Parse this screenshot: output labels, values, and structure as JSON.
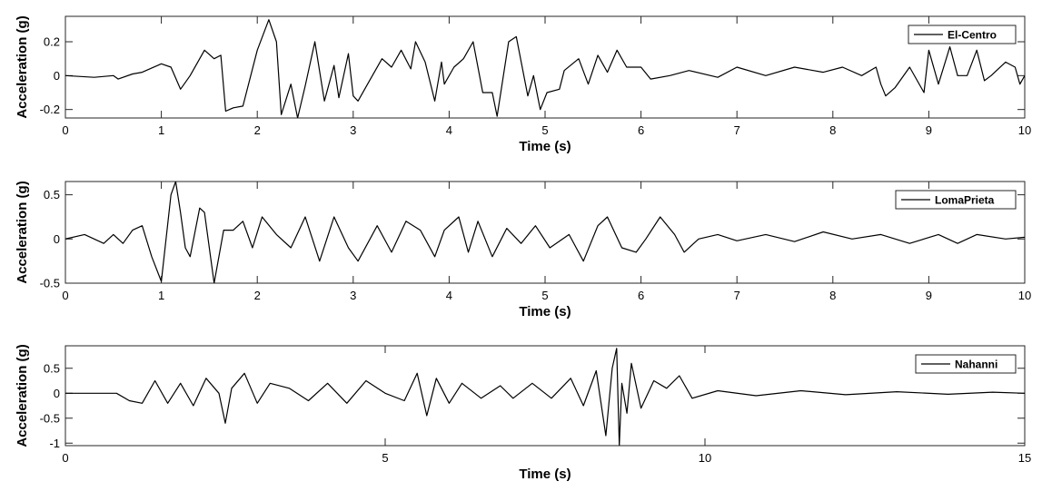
{
  "chart_data": [
    {
      "type": "line",
      "xlabel": "Time (s)",
      "ylabel": "Acceleration (g)",
      "xlim": [
        0,
        10
      ],
      "ylim": [
        -0.25,
        0.35
      ],
      "x_ticks": [
        0,
        1,
        2,
        3,
        4,
        5,
        6,
        7,
        8,
        9,
        10
      ],
      "x_tick_labels": [
        "0",
        "1",
        "2",
        "3",
        "4",
        "5",
        "6",
        "7",
        "8",
        "9",
        "10"
      ],
      "y_ticks": [
        -0.2,
        0,
        0.2
      ],
      "y_tick_labels": [
        "-0.2",
        "0",
        "0.2"
      ],
      "legend_position": "top-right",
      "grid": false,
      "series": [
        {
          "name": "El-Centro",
          "color": "#000000",
          "x": [
            0,
            0.3,
            0.5,
            0.55,
            0.7,
            0.8,
            1.0,
            1.1,
            1.2,
            1.3,
            1.45,
            1.55,
            1.62,
            1.67,
            1.75,
            1.85,
            2.0,
            2.12,
            2.2,
            2.25,
            2.35,
            2.42,
            2.5,
            2.6,
            2.7,
            2.8,
            2.85,
            2.95,
            3.0,
            3.05,
            3.15,
            3.3,
            3.4,
            3.5,
            3.6,
            3.65,
            3.75,
            3.85,
            3.92,
            3.95,
            4.05,
            4.15,
            4.25,
            4.35,
            4.45,
            4.5,
            4.62,
            4.7,
            4.82,
            4.88,
            4.95,
            5.02,
            5.15,
            5.2,
            5.35,
            5.45,
            5.55,
            5.65,
            5.75,
            5.85,
            6.0,
            6.1,
            6.3,
            6.5,
            6.8,
            7.0,
            7.3,
            7.6,
            7.9,
            8.1,
            8.3,
            8.45,
            8.5,
            8.55,
            8.65,
            8.8,
            8.95,
            9.0,
            9.1,
            9.22,
            9.3,
            9.4,
            9.5,
            9.58,
            9.65,
            9.8,
            9.9,
            9.95,
            10.0
          ],
          "y": [
            0,
            -0.01,
            0,
            -0.02,
            0.01,
            0.02,
            0.07,
            0.05,
            -0.08,
            0.0,
            0.15,
            0.1,
            0.12,
            -0.21,
            -0.19,
            -0.18,
            0.15,
            0.33,
            0.2,
            -0.23,
            -0.05,
            -0.25,
            -0.06,
            0.2,
            -0.15,
            0.06,
            -0.13,
            0.13,
            -0.12,
            -0.15,
            -0.05,
            0.1,
            0.05,
            0.15,
            0.04,
            0.2,
            0.08,
            -0.15,
            0.08,
            -0.05,
            0.05,
            0.1,
            0.2,
            -0.1,
            -0.1,
            -0.24,
            0.2,
            0.23,
            -0.12,
            0.0,
            -0.2,
            -0.1,
            -0.08,
            0.03,
            0.1,
            -0.05,
            0.12,
            0.02,
            0.15,
            0.05,
            0.05,
            -0.02,
            0.0,
            0.03,
            -0.01,
            0.05,
            0.0,
            0.05,
            0.02,
            0.05,
            0.0,
            0.05,
            -0.05,
            -0.12,
            -0.07,
            0.05,
            -0.1,
            0.15,
            -0.05,
            0.17,
            0.0,
            0.0,
            0.15,
            -0.03,
            0.0,
            0.08,
            0.05,
            -0.05,
            0.0
          ]
        }
      ]
    },
    {
      "type": "line",
      "xlabel": "Time (s)",
      "ylabel": "Acceleration (g)",
      "xlim": [
        0,
        10
      ],
      "ylim": [
        -0.5,
        0.65
      ],
      "x_ticks": [
        0,
        1,
        2,
        3,
        4,
        5,
        6,
        7,
        8,
        9,
        10
      ],
      "x_tick_labels": [
        "0",
        "1",
        "2",
        "3",
        "4",
        "5",
        "6",
        "7",
        "8",
        "9",
        "10"
      ],
      "y_ticks": [
        -0.5,
        0,
        0.5
      ],
      "y_tick_labels": [
        "-0.5",
        "0",
        "0.5"
      ],
      "legend_position": "top-right",
      "grid": false,
      "series": [
        {
          "name": "LomaPrieta",
          "color": "#000000",
          "x": [
            0,
            0.2,
            0.4,
            0.5,
            0.6,
            0.7,
            0.8,
            0.9,
            1.0,
            1.1,
            1.15,
            1.2,
            1.25,
            1.3,
            1.4,
            1.45,
            1.55,
            1.65,
            1.75,
            1.85,
            1.95,
            2.05,
            2.2,
            2.35,
            2.5,
            2.65,
            2.8,
            2.95,
            3.05,
            3.25,
            3.4,
            3.55,
            3.7,
            3.85,
            3.95,
            4.1,
            4.2,
            4.3,
            4.45,
            4.6,
            4.75,
            4.9,
            5.05,
            5.25,
            5.4,
            5.55,
            5.65,
            5.8,
            5.95,
            6.05,
            6.2,
            6.35,
            6.45,
            6.6,
            6.8,
            7.0,
            7.3,
            7.6,
            7.9,
            8.2,
            8.5,
            8.8,
            9.1,
            9.3,
            9.5,
            9.8,
            10.0
          ],
          "y": [
            0,
            0.05,
            -0.05,
            0.05,
            -0.05,
            0.1,
            0.15,
            -0.2,
            -0.48,
            0.5,
            0.65,
            0.3,
            -0.1,
            -0.2,
            0.35,
            0.3,
            -0.5,
            0.1,
            0.1,
            0.2,
            -0.1,
            0.25,
            0.05,
            -0.1,
            0.25,
            -0.25,
            0.25,
            -0.1,
            -0.25,
            0.15,
            -0.15,
            0.2,
            0.1,
            -0.2,
            0.1,
            0.25,
            -0.15,
            0.2,
            -0.2,
            0.12,
            -0.05,
            0.15,
            -0.1,
            0.05,
            -0.25,
            0.15,
            0.25,
            -0.1,
            -0.15,
            0.0,
            0.25,
            0.05,
            -0.15,
            0.0,
            0.05,
            -0.02,
            0.05,
            -0.03,
            0.08,
            0.0,
            0.05,
            -0.05,
            0.05,
            -0.05,
            0.05,
            0.0,
            0.02
          ]
        }
      ]
    },
    {
      "type": "line",
      "xlabel": "Time (s)",
      "ylabel": "Acceleration (g)",
      "xlim": [
        0,
        15
      ],
      "ylim": [
        -1.05,
        0.95
      ],
      "x_ticks": [
        0,
        5,
        10,
        15
      ],
      "x_tick_labels": [
        "0",
        "5",
        "10",
        "15"
      ],
      "y_ticks": [
        -1,
        -0.5,
        0,
        0.5
      ],
      "y_tick_labels": [
        "-1",
        "-0.5",
        "0",
        "0.5"
      ],
      "legend_position": "top-right",
      "grid": false,
      "series": [
        {
          "name": "Nahanni",
          "color": "#000000",
          "x": [
            0,
            0.5,
            0.8,
            1.0,
            1.2,
            1.4,
            1.6,
            1.8,
            2.0,
            2.2,
            2.4,
            2.5,
            2.6,
            2.8,
            3.0,
            3.2,
            3.5,
            3.8,
            4.1,
            4.4,
            4.7,
            5.0,
            5.3,
            5.5,
            5.65,
            5.8,
            6.0,
            6.2,
            6.5,
            6.8,
            7.0,
            7.3,
            7.6,
            7.9,
            8.1,
            8.3,
            8.45,
            8.55,
            8.62,
            8.66,
            8.7,
            8.78,
            8.85,
            9.0,
            9.2,
            9.4,
            9.6,
            9.8,
            10.2,
            10.8,
            11.5,
            12.2,
            13.0,
            13.8,
            14.5,
            15.0
          ],
          "y": [
            0,
            0.0,
            0.0,
            -0.15,
            -0.2,
            0.25,
            -0.2,
            0.2,
            -0.25,
            0.3,
            0.0,
            -0.6,
            0.1,
            0.4,
            -0.2,
            0.2,
            0.1,
            -0.15,
            0.2,
            -0.2,
            0.25,
            0.0,
            -0.15,
            0.4,
            -0.45,
            0.3,
            -0.2,
            0.2,
            -0.1,
            0.15,
            -0.1,
            0.2,
            -0.1,
            0.3,
            -0.25,
            0.45,
            -0.85,
            0.5,
            0.9,
            -1.05,
            0.2,
            -0.4,
            0.6,
            -0.3,
            0.25,
            0.1,
            0.35,
            -0.1,
            0.05,
            -0.05,
            0.05,
            -0.03,
            0.03,
            -0.02,
            0.02,
            0.0
          ]
        }
      ]
    }
  ]
}
